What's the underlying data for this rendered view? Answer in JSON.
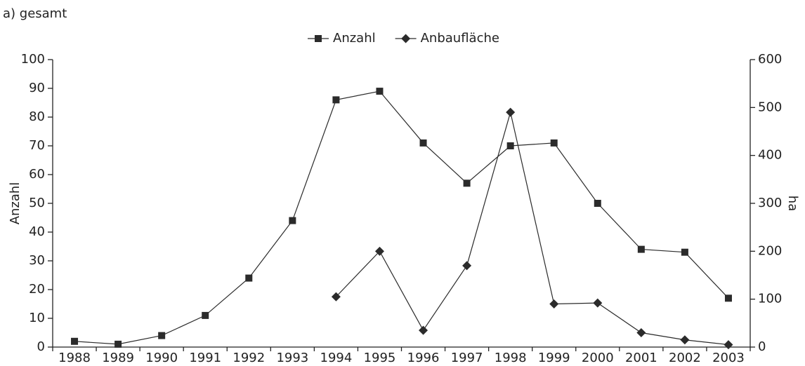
{
  "chart_data": {
    "type": "line",
    "subtitle": "a) gesamt",
    "categories": [
      "1988",
      "1989",
      "1990",
      "1991",
      "1992",
      "1993",
      "1994",
      "1995",
      "1996",
      "1997",
      "1998",
      "1999",
      "2000",
      "2001",
      "2002",
      "2003"
    ],
    "series": [
      {
        "name": "Anzahl",
        "color": "#2b2b2b",
        "marker": "square",
        "axis": "y",
        "values": [
          2,
          1,
          4,
          11,
          24,
          44,
          86,
          89,
          71,
          57,
          70,
          71,
          50,
          34,
          33,
          17
        ]
      },
      {
        "name": "Anbaufläche",
        "color": "#2b2b2b",
        "marker": "diamond",
        "axis": "y2",
        "values": [
          null,
          null,
          null,
          null,
          null,
          null,
          105,
          200,
          35,
          170,
          490,
          90,
          92,
          30,
          15,
          5
        ]
      }
    ],
    "ylabel": "Anzahl",
    "y2label": "ha",
    "ylim": [
      0,
      100
    ],
    "yticks": [
      0,
      10,
      20,
      30,
      40,
      50,
      60,
      70,
      80,
      90,
      100
    ],
    "y2lim": [
      0,
      600
    ],
    "y2ticks": [
      0,
      100,
      200,
      300,
      400,
      500,
      600
    ],
    "legend": "top",
    "grid": false
  }
}
